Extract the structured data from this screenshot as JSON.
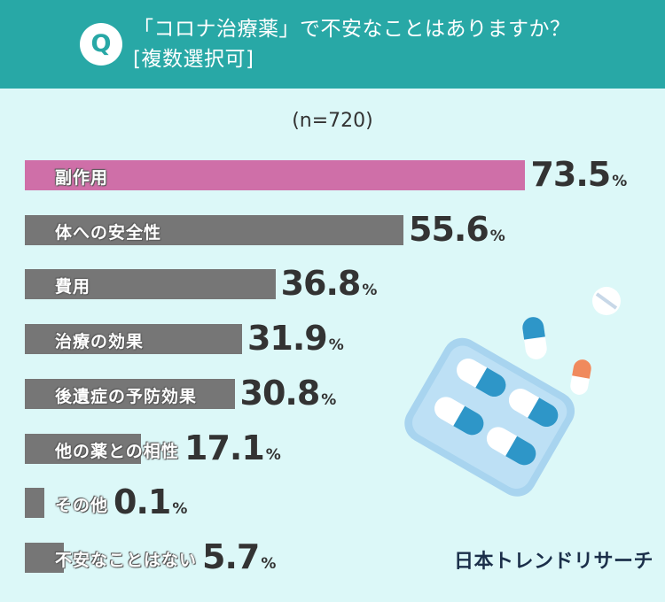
{
  "header": {
    "badge": "Q",
    "question_line1": "「コロナ治療薬」で不安なことはありますか？",
    "question_line2": "[複数選択可]"
  },
  "sample_size": "(n=720)",
  "brand": "日本トレンドリサーチ",
  "colors": {
    "header": "#28a8a6",
    "background": "#dcf8f8",
    "highlight_bar": "#cf6fa8",
    "bar": "#767676"
  },
  "chart_data": {
    "type": "bar",
    "orientation": "horizontal",
    "unit": "%",
    "categories": [
      "副作用",
      "体への安全性",
      "費用",
      "治療の効果",
      "後遺症の予防効果",
      "他の薬との相性",
      "その他",
      "不安なことはない"
    ],
    "values": [
      73.5,
      55.6,
      36.8,
      31.9,
      30.8,
      17.1,
      0.1,
      5.7
    ],
    "value_labels": [
      "73.5",
      "55.6",
      "36.8",
      "31.9",
      "30.8",
      "17.1",
      "0.1",
      "5.7"
    ],
    "highlight_index": 0,
    "xlim": [
      0,
      100
    ]
  },
  "illustration": [
    "pill-blister-pack-icon",
    "capsule-icon",
    "tablet-icon"
  ]
}
